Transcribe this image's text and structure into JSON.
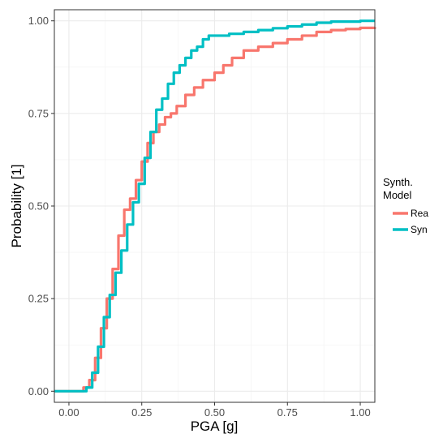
{
  "chart_data": {
    "type": "line",
    "title": "",
    "xlabel": "PGA [g]",
    "ylabel": "Probability [1]",
    "xlim": [
      -0.05,
      1.05
    ],
    "ylim": [
      -0.03,
      1.03
    ],
    "x_ticks": [
      0.0,
      0.25,
      0.5,
      0.75,
      1.0
    ],
    "x_tick_labels": [
      "0.00",
      "0.25",
      "0.50",
      "0.75",
      "1.00"
    ],
    "y_ticks": [
      0.0,
      0.25,
      0.5,
      0.75,
      1.0
    ],
    "y_tick_labels": [
      "0.00",
      "0.25",
      "0.50",
      "0.75",
      "1.00"
    ],
    "grid": true,
    "legend": {
      "title": "Synth. Model",
      "title_lines": [
        "Synth.",
        "Model"
      ],
      "placement": "right",
      "entries": [
        "Rea",
        "Syn"
      ]
    },
    "series": [
      {
        "name": "Rea",
        "color": "#F8766D",
        "x": [
          -0.05,
          0.03,
          0.05,
          0.07,
          0.09,
          0.11,
          0.13,
          0.15,
          0.17,
          0.19,
          0.21,
          0.23,
          0.25,
          0.27,
          0.29,
          0.31,
          0.33,
          0.35,
          0.37,
          0.4,
          0.43,
          0.46,
          0.5,
          0.53,
          0.56,
          0.6,
          0.65,
          0.7,
          0.75,
          0.8,
          0.85,
          0.9,
          0.95,
          1.0,
          1.05
        ],
        "y": [
          0.0,
          0.0,
          0.01,
          0.03,
          0.09,
          0.17,
          0.25,
          0.33,
          0.42,
          0.49,
          0.52,
          0.57,
          0.62,
          0.67,
          0.7,
          0.72,
          0.74,
          0.75,
          0.77,
          0.8,
          0.82,
          0.84,
          0.86,
          0.88,
          0.9,
          0.92,
          0.93,
          0.94,
          0.95,
          0.96,
          0.97,
          0.975,
          0.978,
          0.981,
          0.983
        ]
      },
      {
        "name": "Syn",
        "color": "#00BFC4",
        "x": [
          -0.05,
          0.04,
          0.06,
          0.08,
          0.1,
          0.12,
          0.14,
          0.16,
          0.18,
          0.2,
          0.22,
          0.24,
          0.26,
          0.28,
          0.3,
          0.32,
          0.34,
          0.36,
          0.38,
          0.4,
          0.42,
          0.44,
          0.46,
          0.48,
          0.5,
          0.55,
          0.6,
          0.65,
          0.7,
          0.75,
          0.8,
          0.85,
          0.9,
          1.0,
          1.05
        ],
        "y": [
          0.0,
          0.0,
          0.01,
          0.05,
          0.12,
          0.2,
          0.26,
          0.32,
          0.38,
          0.45,
          0.51,
          0.56,
          0.63,
          0.7,
          0.76,
          0.79,
          0.83,
          0.86,
          0.88,
          0.9,
          0.92,
          0.93,
          0.95,
          0.96,
          0.96,
          0.965,
          0.97,
          0.975,
          0.98,
          0.985,
          0.99,
          0.995,
          0.998,
          1.0,
          1.0
        ]
      }
    ]
  }
}
